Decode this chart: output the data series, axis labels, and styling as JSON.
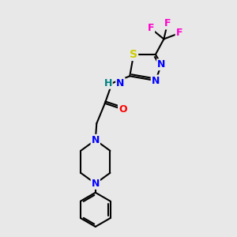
{
  "bg_color": "#e8e8e8",
  "bond_color": "#000000",
  "atom_colors": {
    "N": "#0000ff",
    "O": "#ff0000",
    "S": "#cccc00",
    "F_top": "#ff00cc",
    "F_right": "#ff00cc",
    "H": "#008080",
    "C": "#000000"
  },
  "figsize": [
    3.0,
    3.0
  ],
  "dpi": 100,
  "xlim": [
    0,
    10
  ],
  "ylim": [
    0,
    10
  ]
}
